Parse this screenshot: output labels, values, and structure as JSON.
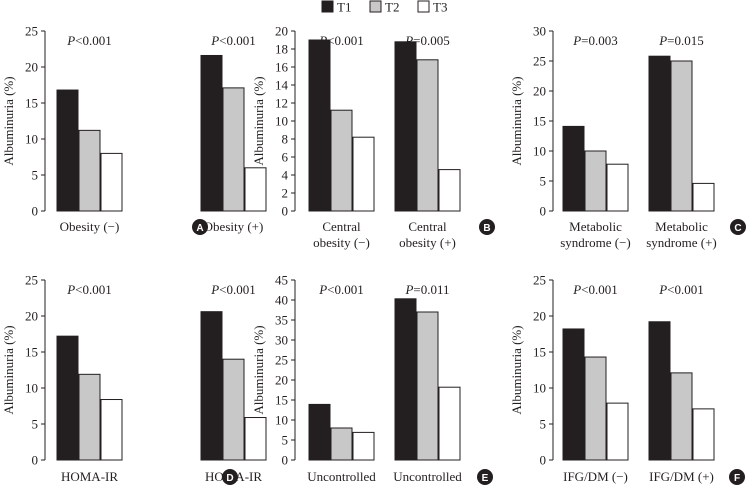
{
  "colors": {
    "T1": "#231f20",
    "T2": "#c8c8c8",
    "T3": "#ffffff",
    "axis": "#231f20"
  },
  "legend": [
    {
      "name": "T1",
      "color": "#231f20"
    },
    {
      "name": "T2",
      "color": "#c8c8c8"
    },
    {
      "name": "T3",
      "color": "#ffffff"
    }
  ],
  "chart_data": [
    {
      "id": "A",
      "type": "bar",
      "ylabel": "Albuminuria (%)",
      "ylim": [
        0,
        25
      ],
      "yticks": [
        0,
        5,
        10,
        15,
        20,
        25
      ],
      "series_names": [
        "T1",
        "T2",
        "T3"
      ],
      "groups": [
        {
          "label_lines": [
            "Obesity (−)"
          ],
          "values": [
            16.8,
            11.2,
            8.0
          ],
          "p_label": "P",
          "p_text": "<0.001"
        },
        {
          "label_lines": [
            "Obesity (+)"
          ],
          "values": [
            21.6,
            17.1,
            6.0
          ],
          "p_label": "P",
          "p_text": "<0.001"
        }
      ]
    },
    {
      "id": "B",
      "type": "bar",
      "ylabel": "Albuminuria (%)",
      "ylim": [
        0,
        20
      ],
      "yticks": [
        0,
        2,
        4,
        6,
        8,
        10,
        12,
        14,
        16,
        18,
        20
      ],
      "series_names": [
        "T1",
        "T2",
        "T3"
      ],
      "groups": [
        {
          "label_lines": [
            "Central",
            "obesity (−)"
          ],
          "values": [
            19.0,
            11.2,
            8.2
          ],
          "p_label": "P",
          "p_text": "<0.001"
        },
        {
          "label_lines": [
            "Central",
            "obesity (+)"
          ],
          "values": [
            18.8,
            16.8,
            4.6
          ],
          "p_label": "P",
          "p_text": "=0.005"
        }
      ]
    },
    {
      "id": "C",
      "type": "bar",
      "ylabel": "Albuminuria (%)",
      "ylim": [
        0,
        30
      ],
      "yticks": [
        0,
        5,
        10,
        15,
        20,
        25,
        30
      ],
      "series_names": [
        "T1",
        "T2",
        "T3"
      ],
      "groups": [
        {
          "label_lines": [
            "Metabolic",
            "syndrome (−)"
          ],
          "values": [
            14.1,
            10.0,
            7.8
          ],
          "p_label": "P",
          "p_text": "=0.003"
        },
        {
          "label_lines": [
            "Metabolic",
            "syndrome (+)"
          ],
          "values": [
            25.8,
            25.0,
            4.6
          ],
          "p_label": "P",
          "p_text": "=0.015"
        }
      ]
    },
    {
      "id": "D",
      "type": "bar",
      "ylabel": "Albuminuria (%)",
      "ylim": [
        0,
        25
      ],
      "yticks": [
        0,
        5,
        10,
        15,
        20,
        25
      ],
      "series_names": [
        "T1",
        "T2",
        "T3"
      ],
      "groups": [
        {
          "label_lines": [
            "HOMA-IR"
          ],
          "values": [
            17.2,
            11.9,
            8.4
          ],
          "p_label": "P",
          "p_text": "<0.001"
        },
        {
          "label_lines": [
            "HOMA-IR"
          ],
          "values": [
            20.6,
            14.0,
            5.9
          ],
          "p_label": "P",
          "p_text": "<0.001"
        }
      ]
    },
    {
      "id": "E",
      "type": "bar",
      "ylabel": "Albuminuria (%)",
      "ylim": [
        0,
        45
      ],
      "yticks": [
        0,
        5,
        10,
        15,
        20,
        25,
        30,
        35,
        40,
        45
      ],
      "series_names": [
        "T1",
        "T2",
        "T3"
      ],
      "groups": [
        {
          "label_lines": [
            "Uncontrolled"
          ],
          "values": [
            13.9,
            8.0,
            6.9
          ],
          "p_label": "P",
          "p_text": "<0.001"
        },
        {
          "label_lines": [
            "Uncontrolled"
          ],
          "values": [
            40.3,
            37.0,
            18.2
          ],
          "p_label": "P",
          "p_text": "=0.011"
        }
      ]
    },
    {
      "id": "F",
      "type": "bar",
      "ylabel": "Albuminuria (%)",
      "ylim": [
        0,
        25
      ],
      "yticks": [
        0,
        5,
        10,
        15,
        20,
        25
      ],
      "series_names": [
        "T1",
        "T2",
        "T3"
      ],
      "groups": [
        {
          "label_lines": [
            "IFG/DM (−)"
          ],
          "values": [
            18.2,
            14.3,
            7.9
          ],
          "p_label": "P",
          "p_text": "<0.001"
        },
        {
          "label_lines": [
            "IFG/DM (+)"
          ],
          "values": [
            19.2,
            12.1,
            7.1
          ],
          "p_label": "P",
          "p_text": "<0.001"
        }
      ]
    }
  ]
}
